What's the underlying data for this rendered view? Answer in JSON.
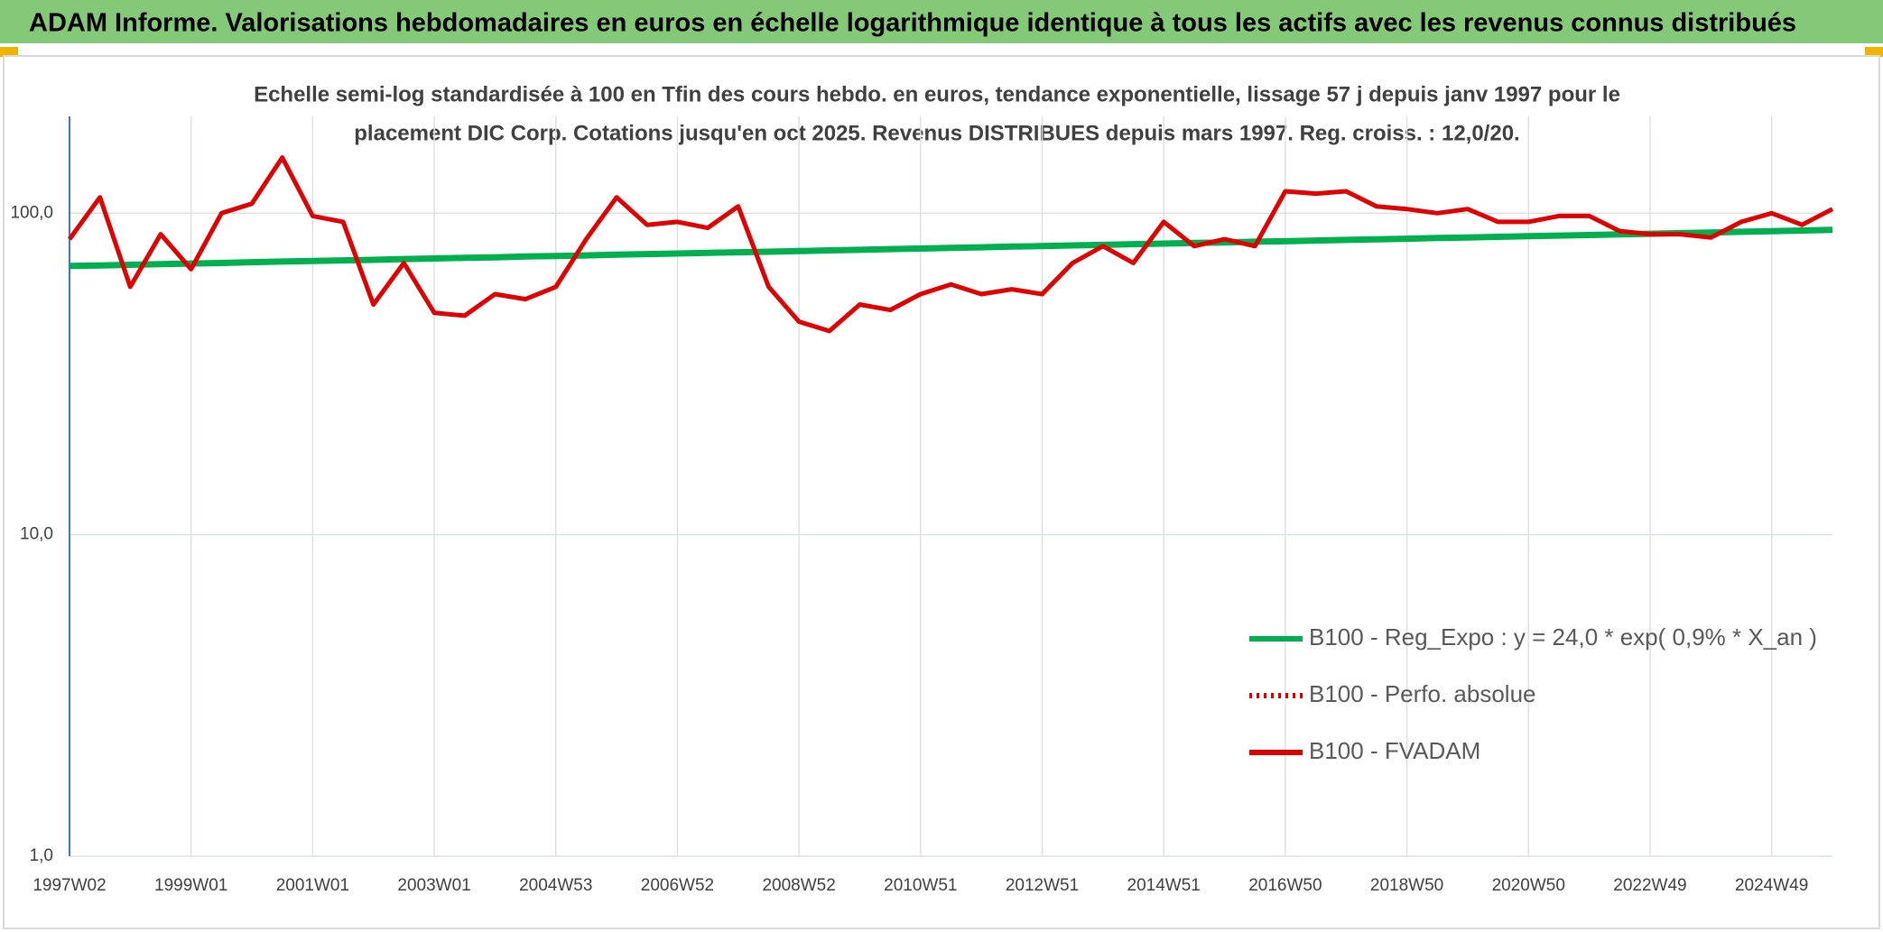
{
  "chart_data": {
    "type": "line",
    "title": "ADAM Informe. Valorisations hebdomadaires en euros en échelle logarithmique identique à tous les actifs avec les revenus connus distribués",
    "subtitle": [
      "Echelle semi-log standardisée à 100 en Tfin des cours hebdo. en euros, tendance exponentielle, lissage 57 j depuis janv 1997 pour le",
      "placement DIC Corp. Cotations jusqu'en oct 2025. Revenus DISTRIBUES depuis mars 1997. Reg. croiss. : 12,0/20."
    ],
    "categories": [
      "1997W02",
      null,
      null,
      null,
      "1999W01",
      null,
      null,
      null,
      "2001W01",
      null,
      null,
      null,
      "2003W01",
      null,
      null,
      null,
      "2004W53",
      null,
      null,
      null,
      "2006W52",
      null,
      null,
      null,
      "2008W52",
      null,
      null,
      null,
      "2010W51",
      null,
      null,
      null,
      "2012W51",
      null,
      null,
      null,
      "2014W51",
      null,
      null,
      null,
      "2016W50",
      null,
      null,
      null,
      "2018W50",
      null,
      null,
      null,
      "2020W50",
      null,
      null,
      null,
      "2022W49",
      null,
      null,
      null,
      "2024W49",
      null,
      null
    ],
    "series": [
      {
        "name": "B100 - Reg_Expo : y = 24,0 * exp( 0,9% *  X_an )",
        "color": "#00b050",
        "style": "solid",
        "values": [
          68.5,
          68.8,
          69.1,
          69.4,
          69.7,
          70.0,
          70.4,
          70.7,
          71.0,
          71.3,
          71.6,
          72.0,
          72.3,
          72.6,
          72.9,
          73.3,
          73.6,
          73.9,
          74.3,
          74.6,
          74.9,
          75.3,
          75.6,
          75.9,
          76.2,
          76.6,
          76.9,
          77.3,
          77.6,
          78.0,
          78.3,
          78.7,
          79.0,
          79.4,
          79.7,
          80.1,
          80.4,
          80.8,
          81.1,
          81.5,
          81.8,
          82.2,
          82.6,
          82.9,
          83.3,
          83.7,
          84.0,
          84.4,
          84.8,
          85.2,
          85.5,
          85.9,
          86.3,
          86.7,
          87.1,
          87.5,
          87.9,
          88.3,
          88.7
        ]
      },
      {
        "name": "B100 - Perfo. absolue",
        "color": "#e00000",
        "style": "dotted",
        "values": [
          null,
          null,
          null,
          null,
          null,
          null,
          null,
          null,
          null,
          null,
          null,
          null,
          null,
          null,
          null,
          null,
          null,
          null,
          null,
          null,
          null,
          null,
          null,
          null,
          null,
          null,
          null,
          null,
          null,
          null,
          null,
          null,
          null,
          null,
          null,
          null,
          null,
          null,
          null,
          null,
          null,
          null,
          null,
          null,
          null,
          null,
          null,
          null,
          null,
          null,
          null,
          null,
          null,
          null,
          null,
          null,
          null,
          null,
          null
        ]
      },
      {
        "name": "B100 - FVADAM",
        "color": "#e00000",
        "style": "solid",
        "values": [
          83,
          112,
          59,
          86,
          67,
          100,
          107,
          149,
          98,
          94,
          52,
          70,
          49,
          48,
          56,
          54,
          59,
          83,
          112,
          92,
          94,
          90,
          105,
          59,
          46,
          43,
          52,
          50,
          56,
          60,
          56,
          58,
          56,
          70,
          79,
          70,
          94,
          79,
          83,
          79,
          117,
          115,
          117,
          105,
          103,
          100,
          103,
          94,
          94,
          98,
          98,
          88,
          86,
          86,
          84,
          94,
          100,
          92,
          103
        ]
      }
    ],
    "log_scale": true,
    "ylim": [
      1,
      200
    ],
    "yticks": [
      {
        "value": 1,
        "label": "1,0"
      },
      {
        "value": 10,
        "label": "10,0"
      },
      {
        "value": 100,
        "label": "100,0"
      }
    ],
    "grid": true
  }
}
